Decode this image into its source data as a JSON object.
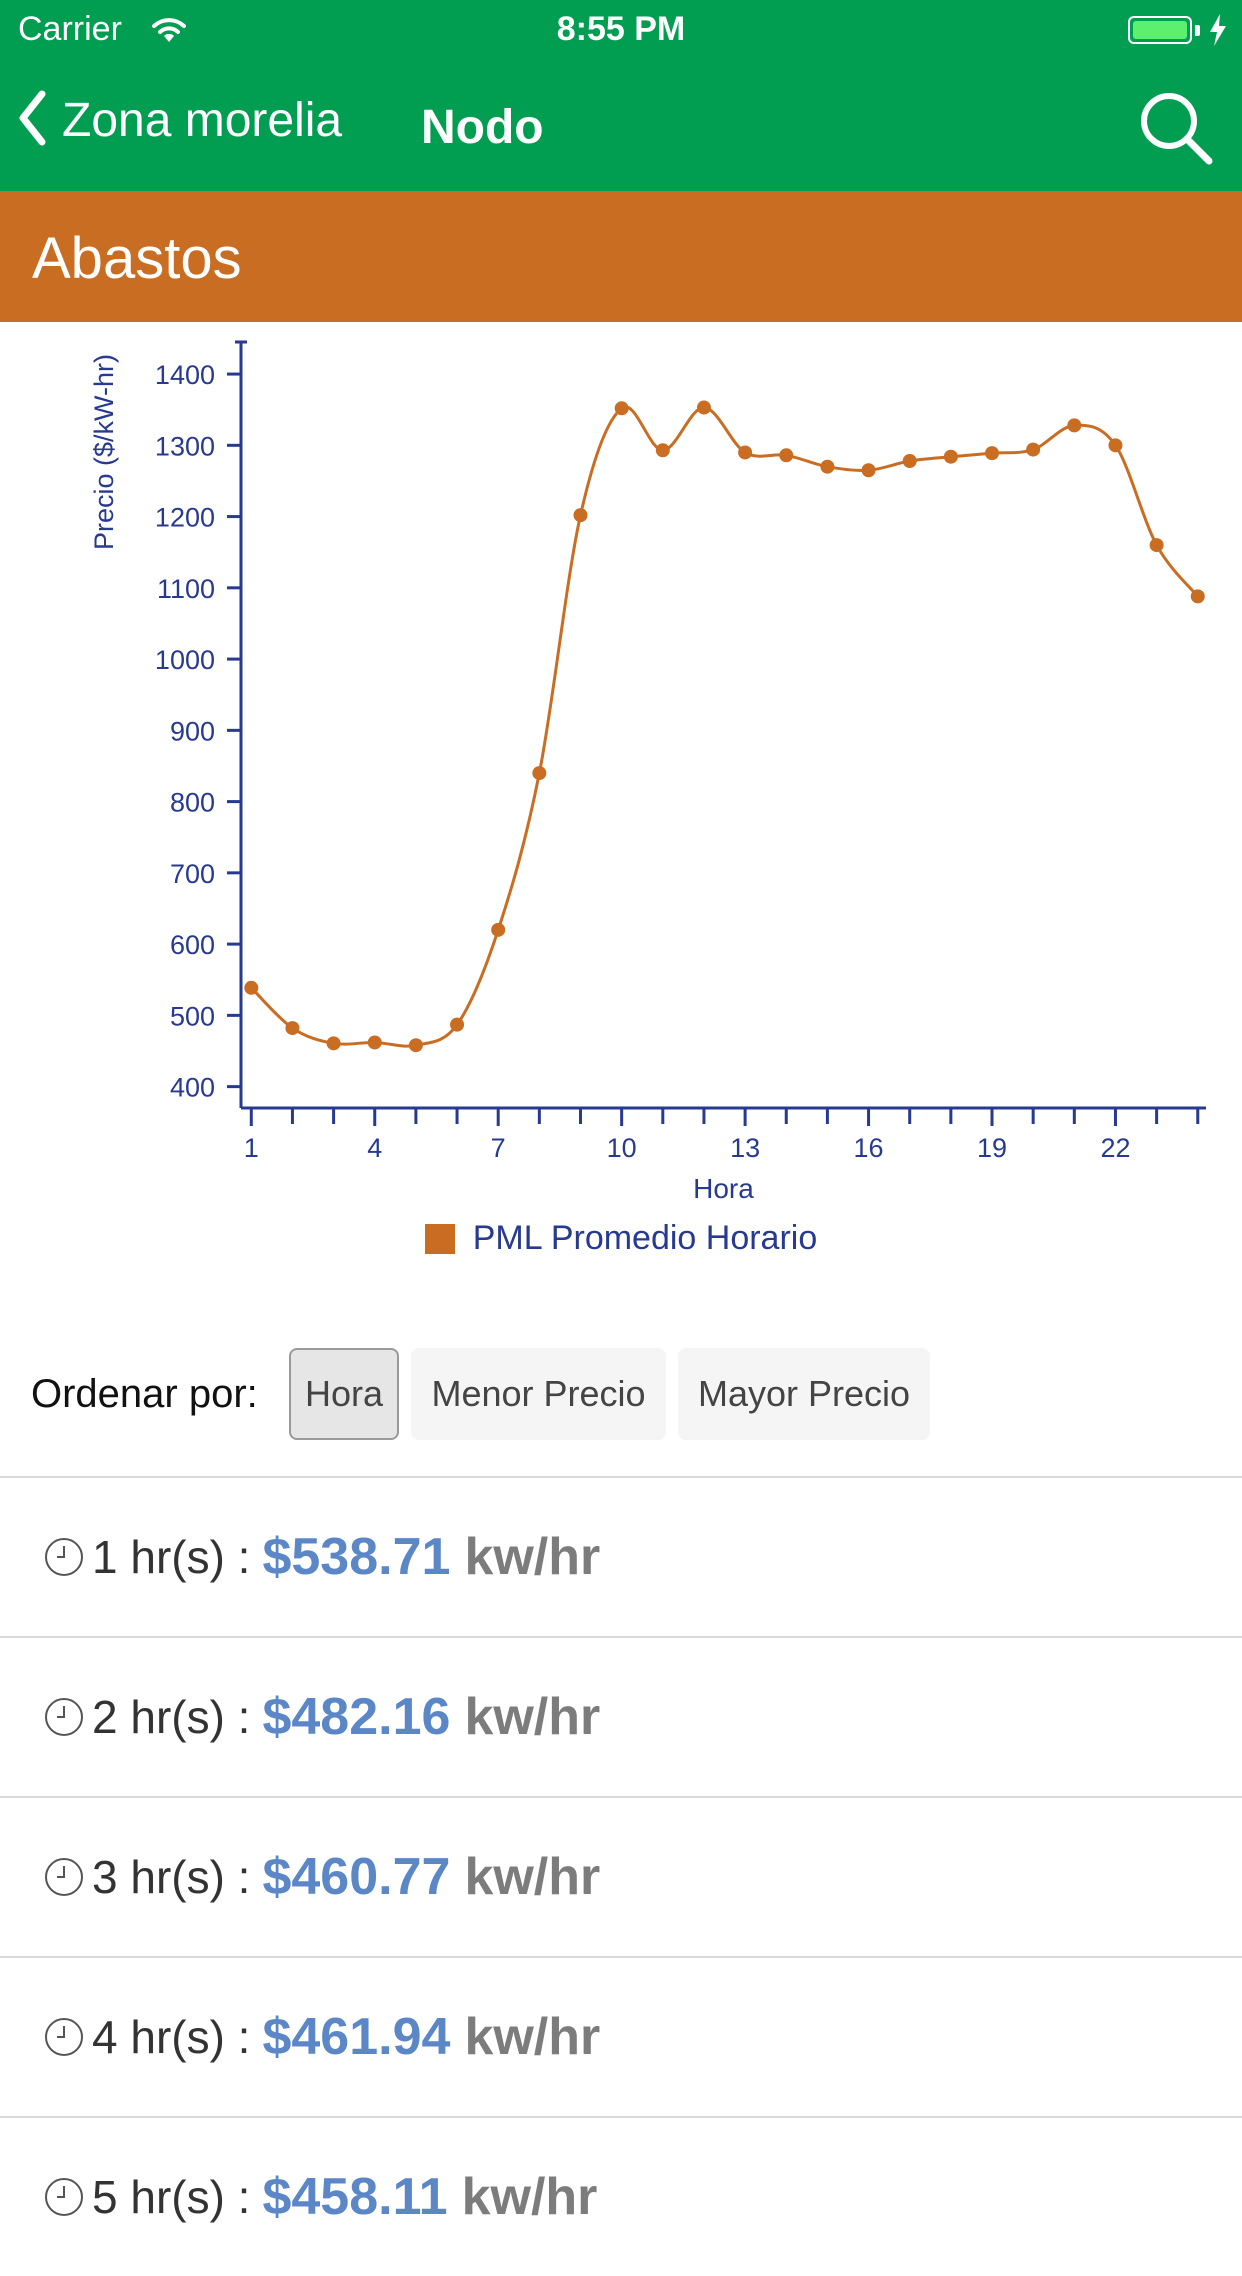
{
  "status_bar": {
    "carrier": "Carrier",
    "time": "8:55 PM"
  },
  "nav": {
    "back_label": "Zona morelia",
    "title": "Nodo"
  },
  "node": {
    "name": "Abastos"
  },
  "colors": {
    "primary": "#019e52",
    "header": "#c96d23",
    "axis": "#273a8f",
    "price": "#5b87c7"
  },
  "chart_data": {
    "type": "line",
    "xlabel": "Hora",
    "ylabel": "Precio ($/kW-hr)",
    "x": [
      1,
      2,
      3,
      4,
      5,
      6,
      7,
      8,
      9,
      10,
      11,
      12,
      13,
      14,
      15,
      16,
      17,
      18,
      19,
      20,
      21,
      22,
      23,
      24
    ],
    "series": [
      {
        "name": "PML Promedio Horario",
        "values": [
          538.71,
          482.16,
          460.77,
          461.94,
          458.11,
          487,
          620,
          840,
          1202,
          1352,
          1293,
          1353,
          1290,
          1286,
          1270,
          1265,
          1278,
          1284,
          1289,
          1294,
          1328,
          1300,
          1160,
          1088
        ]
      }
    ],
    "xticks": [
      1,
      4,
      7,
      10,
      13,
      16,
      19,
      22
    ],
    "yticks": [
      400,
      500,
      600,
      700,
      800,
      900,
      1000,
      1100,
      1200,
      1300,
      1400
    ],
    "xlim": [
      0.75,
      24.2
    ],
    "ylim": [
      370,
      1445
    ],
    "grid": false,
    "legend_position": "bottom"
  },
  "sort": {
    "label": "Ordenar por:",
    "options": [
      {
        "label": "Hora",
        "active": true
      },
      {
        "label": "Menor Precio",
        "active": false
      },
      {
        "label": "Mayor Precio",
        "active": false
      }
    ]
  },
  "list": {
    "items": [
      {
        "hour": "1 hr(s) :",
        "price": "$538.71",
        "unit": "kw/hr"
      },
      {
        "hour": "2 hr(s) :",
        "price": "$482.16",
        "unit": "kw/hr"
      },
      {
        "hour": "3 hr(s) :",
        "price": "$460.77",
        "unit": "kw/hr"
      },
      {
        "hour": "4 hr(s) :",
        "price": "$461.94",
        "unit": "kw/hr"
      },
      {
        "hour": "5 hr(s) :",
        "price": "$458.11",
        "unit": "kw/hr"
      }
    ]
  }
}
